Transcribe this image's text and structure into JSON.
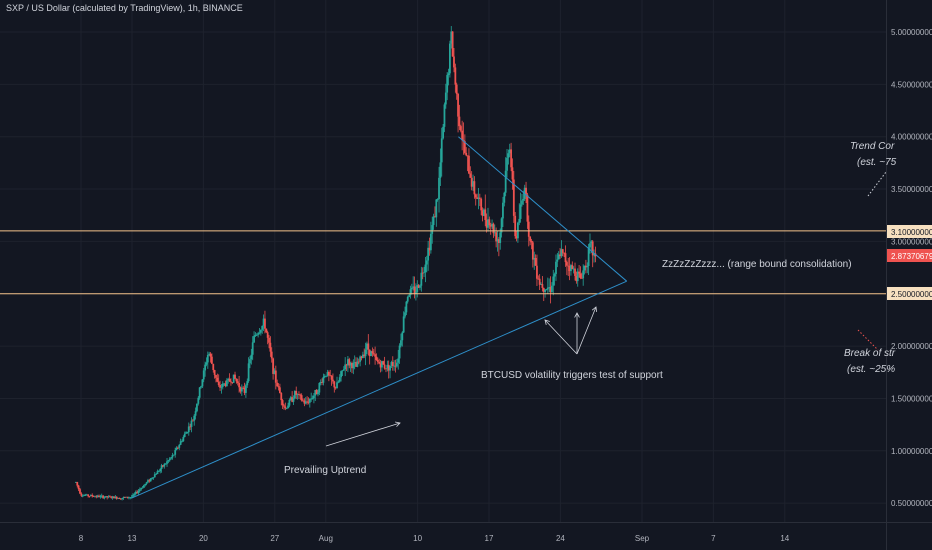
{
  "header": {
    "title": "SXP / US Dollar (calculated by TradingView), 1h, BINANCE"
  },
  "colors": {
    "background": "#131722",
    "grid": "#1e222d",
    "axis_text": "#b2b5be",
    "candle_up": "#26a69a",
    "candle_down": "#ef5350",
    "trendline": "#2e8fc9",
    "level_line": "#f3c28a",
    "annotation": "#d1d4dc",
    "price_tag": "#ef5350",
    "level_tag": "#f7e0c0"
  },
  "chart_data": {
    "type": "candlestick",
    "ylim": [
      0.35,
      5.2
    ],
    "x_ticks": [
      "8",
      "13",
      "20",
      "27",
      "Aug",
      "10",
      "17",
      "24",
      "Sep",
      "7",
      "14"
    ],
    "x_tick_days": [
      8,
      13,
      20,
      27,
      32,
      41,
      48,
      55,
      63,
      70,
      77
    ],
    "y_ticks": [
      "0.50000000",
      "1.00000000",
      "1.50000000",
      "2.00000000",
      "2.50000000",
      "3.00000000",
      "3.50000000",
      "4.00000000",
      "4.50000000",
      "5.00000000"
    ],
    "y_tick_values": [
      0.5,
      1.0,
      1.5,
      2.0,
      2.5,
      3.0,
      3.5,
      4.0,
      4.5,
      5.0
    ],
    "path": [
      [
        7.5,
        0.7
      ],
      [
        8,
        0.58
      ],
      [
        10,
        0.56
      ],
      [
        12,
        0.55
      ],
      [
        13,
        0.56
      ],
      [
        15,
        0.75
      ],
      [
        17,
        0.95
      ],
      [
        19,
        1.3
      ],
      [
        20.5,
        1.95
      ],
      [
        21.5,
        1.6
      ],
      [
        23,
        1.7
      ],
      [
        24,
        1.55
      ],
      [
        25,
        2.1
      ],
      [
        26,
        2.22
      ],
      [
        27,
        1.7
      ],
      [
        28,
        1.4
      ],
      [
        29,
        1.55
      ],
      [
        30,
        1.45
      ],
      [
        31,
        1.55
      ],
      [
        32,
        1.75
      ],
      [
        33,
        1.6
      ],
      [
        34,
        1.85
      ],
      [
        35,
        1.8
      ],
      [
        36,
        2.0
      ],
      [
        37,
        1.85
      ],
      [
        38,
        1.8
      ],
      [
        39,
        1.85
      ],
      [
        40,
        2.5
      ],
      [
        41,
        2.55
      ],
      [
        42,
        2.9
      ],
      [
        43,
        3.45
      ],
      [
        43.8,
        4.45
      ],
      [
        44.3,
        4.95
      ],
      [
        44.8,
        4.4
      ],
      [
        45.5,
        3.9
      ],
      [
        46.5,
        3.5
      ],
      [
        47.5,
        3.25
      ],
      [
        48,
        3.2
      ],
      [
        49,
        3.0
      ],
      [
        50,
        4.0
      ],
      [
        50.6,
        3.0
      ],
      [
        51.5,
        3.55
      ],
      [
        52,
        3.0
      ],
      [
        53,
        2.6
      ],
      [
        54,
        2.55
      ],
      [
        55,
        2.9
      ],
      [
        56,
        2.75
      ],
      [
        57,
        2.65
      ],
      [
        58,
        2.95
      ],
      [
        58.5,
        2.8
      ]
    ],
    "horizontal_levels": [
      3.1,
      2.5
    ],
    "level_labels": [
      "3.10000000",
      "2.50000000"
    ],
    "last_price": 2.87370679,
    "last_price_label": "2.87370679",
    "support_trendline": [
      [
        13,
        0.55
      ],
      [
        61.5,
        2.62
      ]
    ],
    "resistance_trendline": [
      [
        45,
        4.0
      ],
      [
        61.5,
        2.62
      ]
    ]
  },
  "annotations": {
    "consolidation": "ZzZzZzZzzz... (range bound consolidation)",
    "volatility": "BTCUSD volatility triggers test of support",
    "uptrend": "Prevailing Uptrend",
    "trend_line1": "Trend Cor",
    "trend_line2": "(est. ~75",
    "break_line1": "Break of str",
    "break_line2": "(est. ~25%"
  }
}
